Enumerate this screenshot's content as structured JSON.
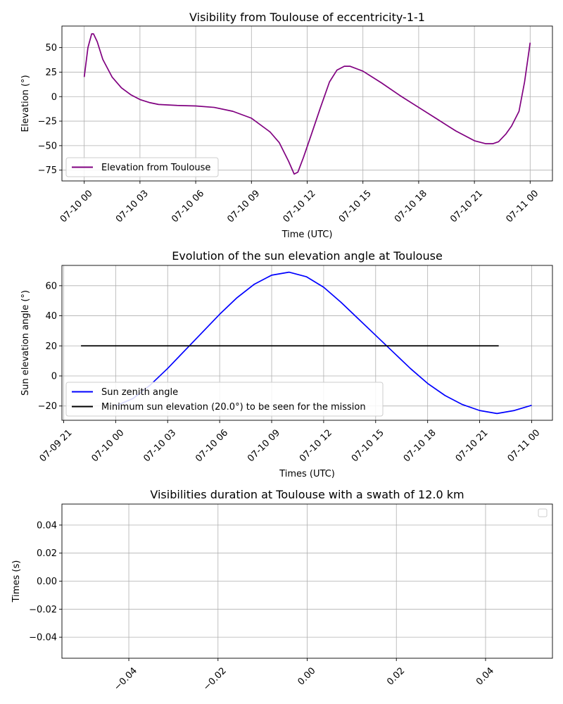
{
  "chart_data": [
    {
      "type": "line",
      "title": "Visibility from Toulouse of eccentricity-1-1",
      "xlabel": "Time (UTC)",
      "ylabel": "Elevation (°)",
      "x_unit": "hours since 07-10 00:00 UTC",
      "xlim": [
        -1.2,
        25.2
      ],
      "ylim": [
        -86,
        72
      ],
      "x_ticks": [
        0,
        3,
        6,
        9,
        12,
        15,
        18,
        21,
        24
      ],
      "x_tick_labels": [
        "07-10 00",
        "07-10 03",
        "07-10 06",
        "07-10 09",
        "07-10 12",
        "07-10 15",
        "07-10 18",
        "07-10 21",
        "07-11 00"
      ],
      "y_ticks": [
        -75,
        -50,
        -25,
        0,
        25,
        50
      ],
      "y_tick_labels": [
        "−75",
        "−50",
        "−25",
        "0",
        "25",
        "50"
      ],
      "grid": true,
      "legend": "lower left",
      "series": [
        {
          "name": "Elevation from Toulouse",
          "color": "#800080",
          "x": [
            0,
            0.2,
            0.4,
            0.5,
            0.7,
            1.0,
            1.5,
            2.0,
            2.5,
            3.0,
            3.5,
            4.0,
            5.0,
            6.0,
            7.0,
            8.0,
            9.0,
            10.0,
            10.5,
            11.0,
            11.3,
            11.5,
            11.8,
            12.2,
            12.7,
            13.2,
            13.6,
            14.0,
            14.3,
            15.0,
            16.0,
            17.0,
            18.0,
            19.0,
            20.0,
            21.0,
            21.6,
            22.0,
            22.3,
            22.7,
            23.0,
            23.4,
            23.7,
            24.0
          ],
          "y": [
            20,
            50,
            64,
            64,
            56,
            38,
            20,
            9,
            2,
            -3,
            -6,
            -8,
            -9,
            -9.5,
            -11,
            -15,
            -22,
            -36,
            -47,
            -66,
            -79,
            -77,
            -62,
            -40,
            -12,
            15,
            27,
            31,
            31,
            26,
            14,
            1,
            -11,
            -23,
            -35,
            -45,
            -48,
            -48,
            -46,
            -38,
            -30,
            -15,
            15,
            55
          ]
        }
      ]
    },
    {
      "type": "line",
      "title": "Evolution of the sun elevation angle at Toulouse",
      "xlabel": "Times (UTC)",
      "ylabel": "Sun elevation angle (°)",
      "x_unit": "hours since 07-10 00:00 UTC",
      "xlim": [
        -3.1,
        25.2
      ],
      "ylim": [
        -29.5,
        73.5
      ],
      "x_ticks": [
        -3,
        0,
        3,
        6,
        9,
        12,
        15,
        18,
        21,
        24
      ],
      "x_tick_labels": [
        "07-09 21",
        "07-10 00",
        "07-10 03",
        "07-10 06",
        "07-10 09",
        "07-10 12",
        "07-10 15",
        "07-10 18",
        "07-10 21",
        "07-11 00"
      ],
      "y_ticks": [
        -20,
        0,
        20,
        40,
        60
      ],
      "y_tick_labels": [
        "−20",
        "0",
        "20",
        "40",
        "60"
      ],
      "grid": true,
      "legend": "lower left",
      "series": [
        {
          "name": "Sun zenith angle",
          "color": "#0000ff",
          "x": [
            0,
            1,
            2,
            3,
            4,
            5,
            6,
            7,
            8,
            9,
            10,
            11,
            12,
            13,
            14,
            15,
            16,
            17,
            18,
            19,
            20,
            21,
            22,
            23,
            24
          ],
          "y": [
            -20,
            -15,
            -6,
            5,
            17,
            29,
            41,
            52,
            61,
            67,
            69,
            66,
            59,
            49,
            38,
            27,
            16,
            5,
            -5,
            -13,
            -19,
            -23,
            -25,
            -23,
            -19.5
          ]
        },
        {
          "name": "Minimum sun elevation (20.0°) to be seen for the mission",
          "color": "#000000",
          "x": [
            -2,
            22.1
          ],
          "y": [
            20,
            20
          ]
        }
      ]
    },
    {
      "type": "bar",
      "title": "Visibilities duration at Toulouse with a swath of 12.0 km",
      "xlabel": "",
      "ylabel": "Times (s)",
      "xlim": [
        -0.055,
        0.055
      ],
      "ylim": [
        -0.055,
        0.055
      ],
      "x_ticks": [
        -0.04,
        -0.02,
        0.0,
        0.02,
        0.04
      ],
      "x_tick_labels": [
        "−0.04",
        "−0.02",
        "0.00",
        "0.02",
        "0.04"
      ],
      "y_ticks": [
        -0.04,
        -0.02,
        0.0,
        0.02,
        0.04
      ],
      "y_tick_labels": [
        "−0.04",
        "−0.02",
        "0.00",
        "0.02",
        "0.04"
      ],
      "grid": true,
      "legend": "upper right (empty)",
      "series": []
    }
  ]
}
